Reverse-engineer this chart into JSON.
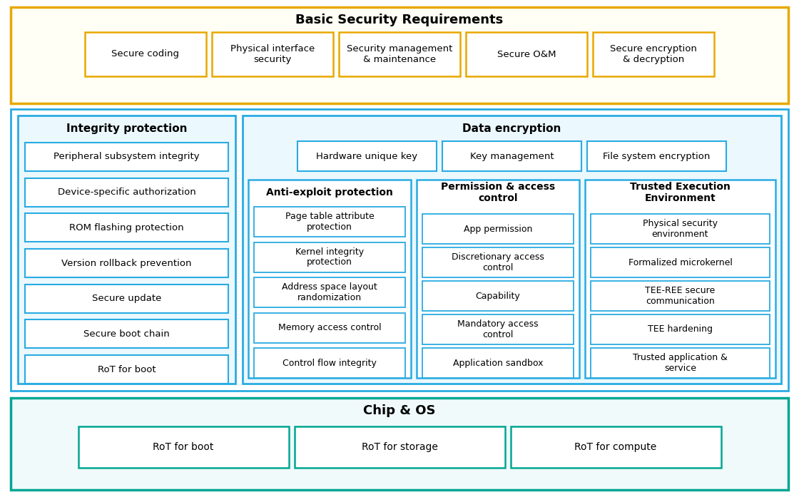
{
  "bg_color": "#ffffff",
  "fig_width": 11.2,
  "fig_height": 6.97,
  "colors": {
    "gold": "#E8A800",
    "gold_bg": "#FFFFF5",
    "blue": "#29ABE2",
    "blue_bg": "#EBF8FE",
    "teal": "#00A693",
    "teal_bg": "#F0FAFA",
    "white": "#ffffff",
    "black": "#000000"
  },
  "bsr": {
    "title": "Basic Security Requirements",
    "items": [
      "Secure coding",
      "Physical interface\nsecurity",
      "Security management\n& maintenance",
      "Secure O&M",
      "Secure encryption\n& decryption"
    ]
  },
  "cos": {
    "title": "Chip & OS",
    "items": [
      "RoT for boot",
      "RoT for storage",
      "RoT for compute"
    ]
  },
  "integrity": {
    "title": "Integrity protection",
    "items": [
      "Peripheral subsystem integrity",
      "Device-specific authorization",
      "ROM flashing protection",
      "Version rollback prevention",
      "Secure update",
      "Secure boot chain",
      "RoT for boot"
    ]
  },
  "data_enc": {
    "title": "Data encryption",
    "top_items": [
      "Hardware unique key",
      "Key management",
      "File system encryption"
    ]
  },
  "anti_exploit": {
    "title": "Anti-exploit protection",
    "items": [
      "Page table attribute\nprotection",
      "Kernel integrity\nprotection",
      "Address space layout\nrandomization",
      "Memory access control",
      "Control flow integrity"
    ]
  },
  "permission": {
    "title": "Permission & access\ncontrol",
    "items": [
      "App permission",
      "Discretionary access\ncontrol",
      "Capability",
      "Mandatory access\ncontrol",
      "Application sandbox"
    ]
  },
  "tee": {
    "title": "Trusted Execution\nEnvironment",
    "items": [
      "Physical security\nenvironment",
      "Formalized microkernel",
      "TEE-REE secure\ncommunication",
      "TEE hardening",
      "Trusted application &\nservice"
    ]
  }
}
